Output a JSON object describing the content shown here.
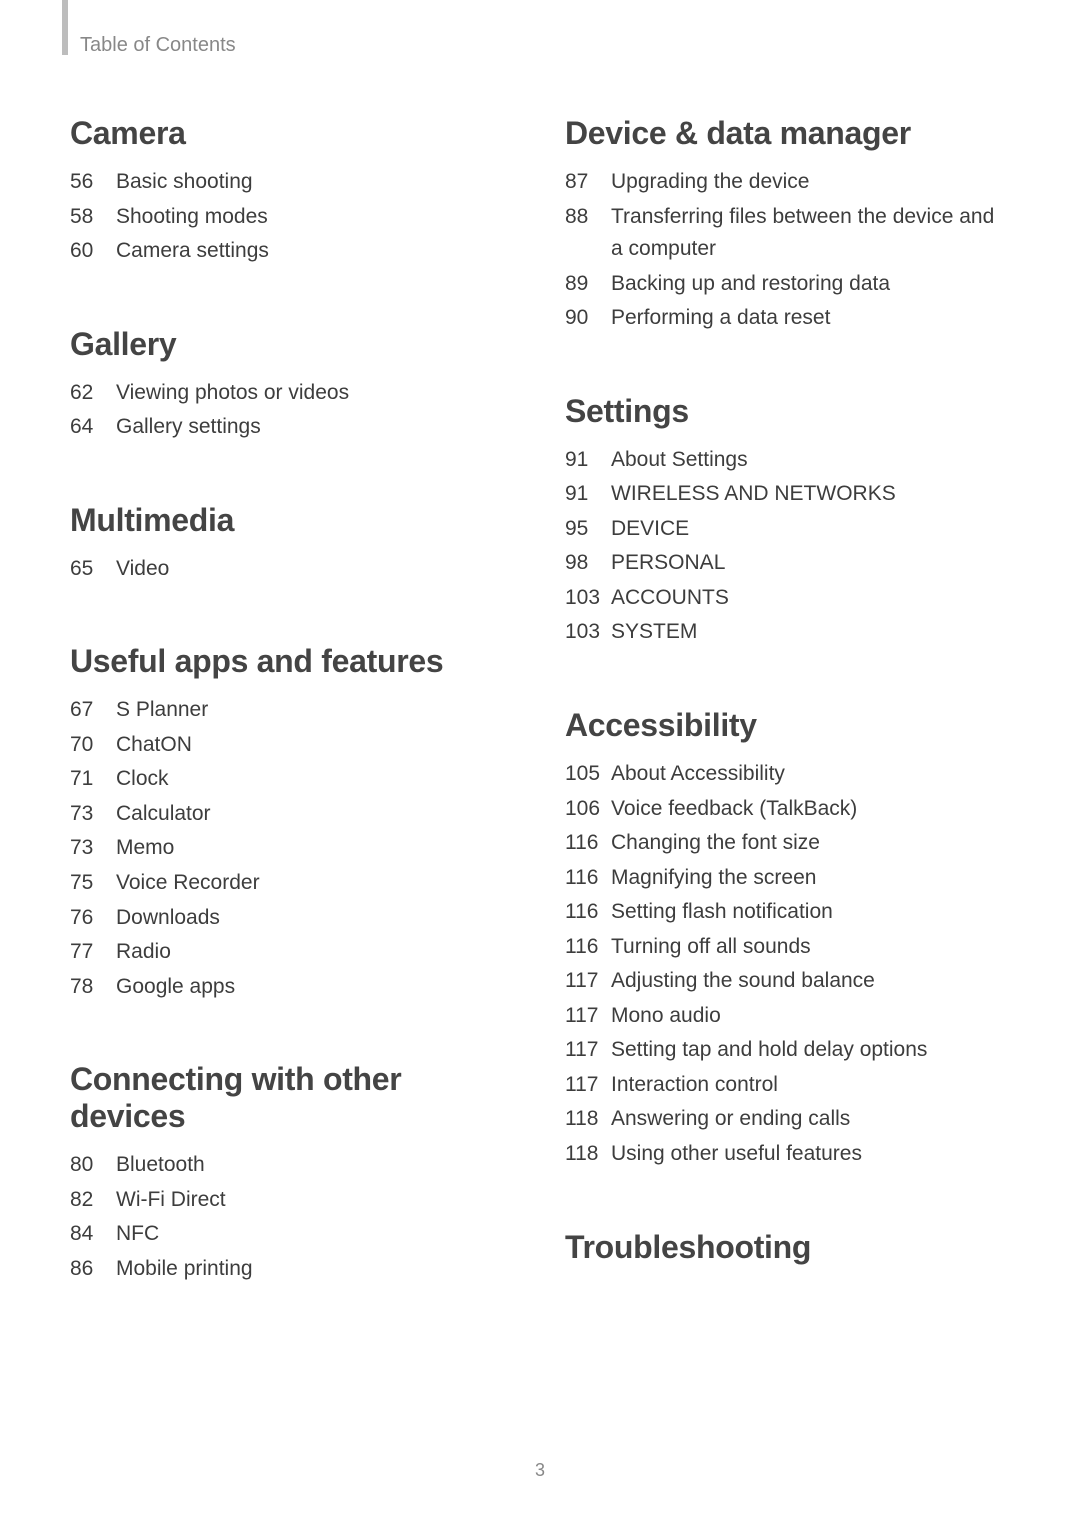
{
  "running_head": "Table of Contents",
  "page_number": "3",
  "left_column": [
    {
      "title": "Camera",
      "items": [
        {
          "pg": "56",
          "label": "Basic shooting"
        },
        {
          "pg": "58",
          "label": "Shooting modes"
        },
        {
          "pg": "60",
          "label": "Camera settings"
        }
      ]
    },
    {
      "title": "Gallery",
      "items": [
        {
          "pg": "62",
          "label": "Viewing photos or videos"
        },
        {
          "pg": "64",
          "label": "Gallery settings"
        }
      ]
    },
    {
      "title": "Multimedia",
      "items": [
        {
          "pg": "65",
          "label": "Video"
        }
      ]
    },
    {
      "title": "Useful apps and features",
      "items": [
        {
          "pg": "67",
          "label": "S Planner"
        },
        {
          "pg": "70",
          "label": "ChatON"
        },
        {
          "pg": "71",
          "label": "Clock"
        },
        {
          "pg": "73",
          "label": "Calculator"
        },
        {
          "pg": "73",
          "label": "Memo"
        },
        {
          "pg": "75",
          "label": "Voice Recorder"
        },
        {
          "pg": "76",
          "label": "Downloads"
        },
        {
          "pg": "77",
          "label": "Radio"
        },
        {
          "pg": "78",
          "label": "Google apps"
        }
      ]
    },
    {
      "title": "Connecting with other devices",
      "items": [
        {
          "pg": "80",
          "label": "Bluetooth"
        },
        {
          "pg": "82",
          "label": "Wi-Fi Direct"
        },
        {
          "pg": "84",
          "label": "NFC"
        },
        {
          "pg": "86",
          "label": "Mobile printing"
        }
      ]
    }
  ],
  "right_column": [
    {
      "title": "Device & data manager",
      "items": [
        {
          "pg": "87",
          "label": "Upgrading the device"
        },
        {
          "pg": "88",
          "label": "Transferring files between the device and a computer"
        },
        {
          "pg": "89",
          "label": "Backing up and restoring data"
        },
        {
          "pg": "90",
          "label": "Performing a data reset"
        }
      ]
    },
    {
      "title": "Settings",
      "items": [
        {
          "pg": "91",
          "label": "About Settings"
        },
        {
          "pg": "91",
          "label": "WIRELESS AND NETWORKS"
        },
        {
          "pg": "95",
          "label": "DEVICE"
        },
        {
          "pg": "98",
          "label": "PERSONAL"
        },
        {
          "pg": "103",
          "label": "ACCOUNTS"
        },
        {
          "pg": "103",
          "label": "SYSTEM"
        }
      ]
    },
    {
      "title": "Accessibility",
      "items": [
        {
          "pg": "105",
          "label": "About Accessibility"
        },
        {
          "pg": "106",
          "label": "Voice feedback (TalkBack)"
        },
        {
          "pg": "116",
          "label": "Changing the font size"
        },
        {
          "pg": "116",
          "label": "Magnifying the screen"
        },
        {
          "pg": "116",
          "label": "Setting flash notification"
        },
        {
          "pg": "116",
          "label": "Turning off all sounds"
        },
        {
          "pg": "117",
          "label": "Adjusting the sound balance"
        },
        {
          "pg": "117",
          "label": "Mono audio"
        },
        {
          "pg": "117",
          "label": "Setting tap and hold delay options"
        },
        {
          "pg": "117",
          "label": "Interaction control"
        },
        {
          "pg": "118",
          "label": "Answering or ending calls"
        },
        {
          "pg": "118",
          "label": "Using other useful features"
        }
      ]
    },
    {
      "title": "Troubleshooting",
      "items": []
    }
  ]
}
